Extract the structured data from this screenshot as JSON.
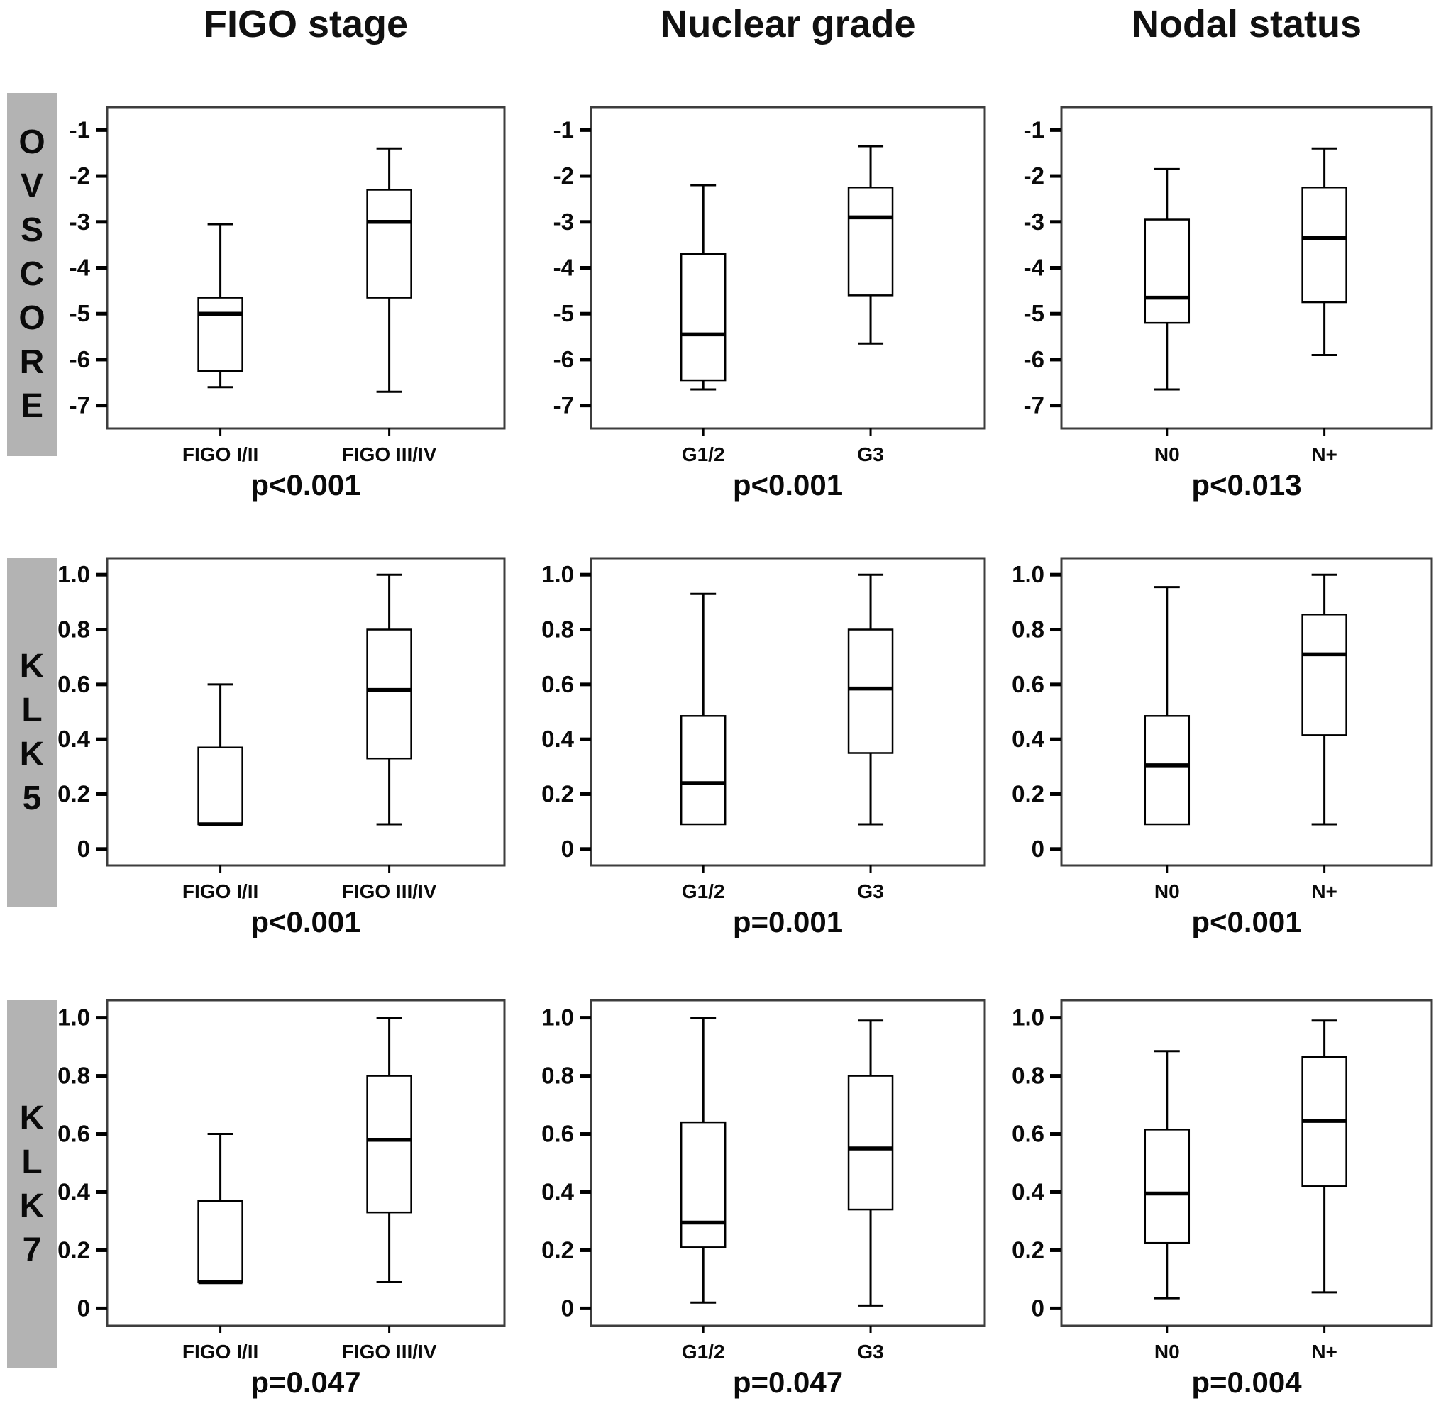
{
  "figure_title": "",
  "columns": [
    {
      "label": "FIGO stage"
    },
    {
      "label": "Nuclear grade"
    },
    {
      "label": "Nodal status"
    }
  ],
  "rows": [
    {
      "label": "OVSCORE"
    },
    {
      "label": "KLK5"
    },
    {
      "label": "KLK7"
    }
  ],
  "colors": {
    "background": "#ffffff",
    "frame": "#3d3d3d",
    "box_line": "#000000",
    "text": "#0a0a0a",
    "row_label_bg": "#b3b3b3"
  },
  "chart_data": [
    {
      "type": "box",
      "row": "OVSCORE",
      "col": "FIGO stage",
      "ylim": [
        -7.5,
        -0.5
      ],
      "yticks": [
        -1,
        -2,
        -3,
        -4,
        -5,
        -6,
        -7
      ],
      "ytick_labels": [
        "-1",
        "-2",
        "-3",
        "-4",
        "-5",
        "-6",
        "-7"
      ],
      "categories": [
        "FIGO I/II",
        "FIGO III/IV"
      ],
      "boxes": [
        {
          "category": "FIGO I/II",
          "whisker_low": -6.6,
          "q1": -6.25,
          "median": -5.0,
          "q3": -4.65,
          "whisker_high": -3.05
        },
        {
          "category": "FIGO III/IV",
          "whisker_low": -6.7,
          "q1": -4.65,
          "median": -3.0,
          "q3": -2.3,
          "whisker_high": -1.4
        }
      ],
      "p_value": "p<0.001"
    },
    {
      "type": "box",
      "row": "OVSCORE",
      "col": "Nuclear grade",
      "ylim": [
        -7.5,
        -0.5
      ],
      "yticks": [
        -1,
        -2,
        -3,
        -4,
        -5,
        -6,
        -7
      ],
      "ytick_labels": [
        "-1",
        "-2",
        "-3",
        "-4",
        "-5",
        "-6",
        "-7"
      ],
      "categories": [
        "G1/2",
        "G3"
      ],
      "boxes": [
        {
          "category": "G1/2",
          "whisker_low": -6.65,
          "q1": -6.45,
          "median": -5.45,
          "q3": -3.7,
          "whisker_high": -2.2
        },
        {
          "category": "G3",
          "whisker_low": -5.65,
          "q1": -4.6,
          "median": -2.9,
          "q3": -2.25,
          "whisker_high": -1.35
        }
      ],
      "p_value": "p<0.001"
    },
    {
      "type": "box",
      "row": "OVSCORE",
      "col": "Nodal status",
      "ylim": [
        -7.5,
        -0.5
      ],
      "yticks": [
        -1,
        -2,
        -3,
        -4,
        -5,
        -6,
        -7
      ],
      "ytick_labels": [
        "-1",
        "-2",
        "-3",
        "-4",
        "-5",
        "-6",
        "-7"
      ],
      "categories": [
        "N0",
        "N+"
      ],
      "boxes": [
        {
          "category": "N0",
          "whisker_low": -6.65,
          "q1": -5.2,
          "median": -4.65,
          "q3": -2.95,
          "whisker_high": -1.85
        },
        {
          "category": "N+",
          "whisker_low": -5.9,
          "q1": -4.75,
          "median": -3.35,
          "q3": -2.25,
          "whisker_high": -1.4
        }
      ],
      "p_value": "p<0.013"
    },
    {
      "type": "box",
      "row": "KLK5",
      "col": "FIGO stage",
      "ylim": [
        -0.06,
        1.06
      ],
      "yticks": [
        1.0,
        0.8,
        0.6,
        0.4,
        0.2,
        0
      ],
      "ytick_labels": [
        "1.0",
        "0.8",
        "0.6",
        "0.4",
        "0.2",
        "0"
      ],
      "categories": [
        "FIGO I/II",
        "FIGO III/IV"
      ],
      "boxes": [
        {
          "category": "FIGO I/II",
          "whisker_low": 0.09,
          "q1": 0.09,
          "median": 0.09,
          "q3": 0.37,
          "whisker_high": 0.6
        },
        {
          "category": "FIGO III/IV",
          "whisker_low": 0.09,
          "q1": 0.33,
          "median": 0.58,
          "q3": 0.8,
          "whisker_high": 1.0
        }
      ],
      "p_value": "p<0.001"
    },
    {
      "type": "box",
      "row": "KLK5",
      "col": "Nuclear grade",
      "ylim": [
        -0.06,
        1.06
      ],
      "yticks": [
        1.0,
        0.8,
        0.6,
        0.4,
        0.2,
        0
      ],
      "ytick_labels": [
        "1.0",
        "0.8",
        "0.6",
        "0.4",
        "0.2",
        "0"
      ],
      "categories": [
        "G1/2",
        "G3"
      ],
      "boxes": [
        {
          "category": "G1/2",
          "whisker_low": 0.09,
          "q1": 0.09,
          "median": 0.24,
          "q3": 0.485,
          "whisker_high": 0.93
        },
        {
          "category": "G3",
          "whisker_low": 0.09,
          "q1": 0.35,
          "median": 0.585,
          "q3": 0.8,
          "whisker_high": 1.0
        }
      ],
      "p_value": "p=0.001"
    },
    {
      "type": "box",
      "row": "KLK5",
      "col": "Nodal status",
      "ylim": [
        -0.06,
        1.06
      ],
      "yticks": [
        1.0,
        0.8,
        0.6,
        0.4,
        0.2,
        0
      ],
      "ytick_labels": [
        "1.0",
        "0.8",
        "0.6",
        "0.4",
        "0.2",
        "0"
      ],
      "categories": [
        "N0",
        "N+"
      ],
      "boxes": [
        {
          "category": "N0",
          "whisker_low": 0.09,
          "q1": 0.09,
          "median": 0.305,
          "q3": 0.485,
          "whisker_high": 0.955
        },
        {
          "category": "N+",
          "whisker_low": 0.09,
          "q1": 0.415,
          "median": 0.71,
          "q3": 0.855,
          "whisker_high": 1.0
        }
      ],
      "p_value": "p<0.001"
    },
    {
      "type": "box",
      "row": "KLK7",
      "col": "FIGO stage",
      "ylim": [
        -0.06,
        1.06
      ],
      "yticks": [
        1.0,
        0.8,
        0.6,
        0.4,
        0.2,
        0
      ],
      "ytick_labels": [
        "1.0",
        "0.8",
        "0.6",
        "0.4",
        "0.2",
        "0"
      ],
      "categories": [
        "FIGO I/II",
        "FIGO III/IV"
      ],
      "boxes": [
        {
          "category": "FIGO I/II",
          "whisker_low": 0.09,
          "q1": 0.09,
          "median": 0.09,
          "q3": 0.37,
          "whisker_high": 0.6
        },
        {
          "category": "FIGO III/IV",
          "whisker_low": 0.09,
          "q1": 0.33,
          "median": 0.58,
          "q3": 0.8,
          "whisker_high": 1.0
        }
      ],
      "p_value": "p=0.047"
    },
    {
      "type": "box",
      "row": "KLK7",
      "col": "Nuclear grade",
      "ylim": [
        -0.06,
        1.06
      ],
      "yticks": [
        1.0,
        0.8,
        0.6,
        0.4,
        0.2,
        0
      ],
      "ytick_labels": [
        "1.0",
        "0.8",
        "0.6",
        "0.4",
        "0.2",
        "0"
      ],
      "categories": [
        "G1/2",
        "G3"
      ],
      "boxes": [
        {
          "category": "G1/2",
          "whisker_low": 0.02,
          "q1": 0.21,
          "median": 0.295,
          "q3": 0.64,
          "whisker_high": 1.0
        },
        {
          "category": "G3",
          "whisker_low": 0.01,
          "q1": 0.34,
          "median": 0.55,
          "q3": 0.8,
          "whisker_high": 0.99
        }
      ],
      "p_value": "p=0.047"
    },
    {
      "type": "box",
      "row": "KLK7",
      "col": "Nodal status",
      "ylim": [
        -0.06,
        1.06
      ],
      "yticks": [
        1.0,
        0.8,
        0.6,
        0.4,
        0.2,
        0
      ],
      "ytick_labels": [
        "1.0",
        "0.8",
        "0.6",
        "0.4",
        "0.2",
        "0"
      ],
      "categories": [
        "N0",
        "N+"
      ],
      "boxes": [
        {
          "category": "N0",
          "whisker_low": 0.035,
          "q1": 0.225,
          "median": 0.395,
          "q3": 0.615,
          "whisker_high": 0.885
        },
        {
          "category": "N+",
          "whisker_low": 0.055,
          "q1": 0.42,
          "median": 0.645,
          "q3": 0.865,
          "whisker_high": 0.99
        }
      ],
      "p_value": "p=0.004"
    }
  ]
}
